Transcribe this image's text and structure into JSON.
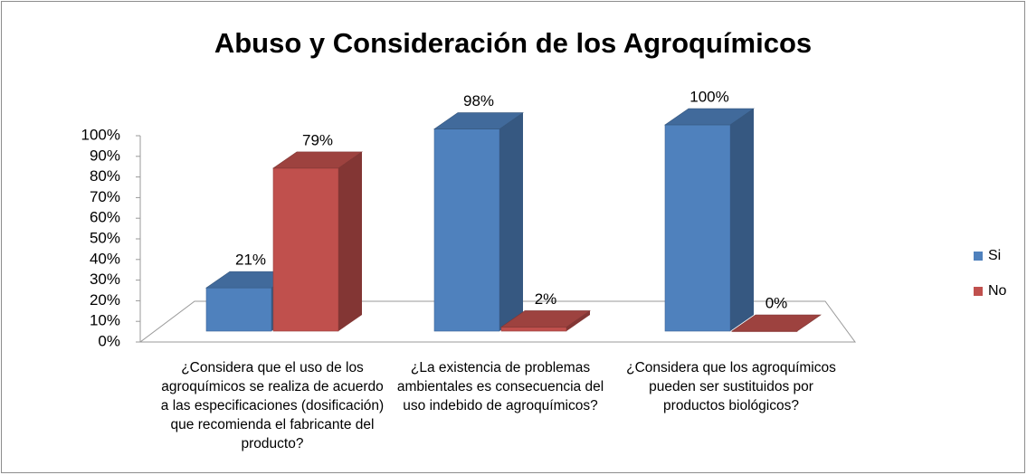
{
  "chart_data": {
    "type": "bar3d",
    "title": "Abuso y Consideración de los Agroquímicos",
    "categories": [
      "¿Considera que el uso de los agroquímicos se realiza de acuerdo a las especificaciones (dosificación) que recomienda el fabricante del producto?",
      "¿La existencia de problemas ambientales es consecuencia del uso indebido de agroquímicos?",
      "¿Considera que los agroquímicos pueden ser sustituidos por productos biológicos?"
    ],
    "series": [
      {
        "name": "Si",
        "color": "#4f81bd",
        "values": [
          21,
          98,
          100
        ],
        "value_labels": [
          "21%",
          "98%",
          "100%"
        ]
      },
      {
        "name": "No",
        "color": "#c0504d",
        "values": [
          79,
          2,
          0
        ],
        "value_labels": [
          "79%",
          "2%",
          "0%"
        ]
      }
    ],
    "ylim": [
      0,
      100
    ],
    "yticks": [
      {
        "value": 0,
        "label": "0%"
      },
      {
        "value": 10,
        "label": "10%"
      },
      {
        "value": 20,
        "label": "20%"
      },
      {
        "value": 30,
        "label": "30%"
      },
      {
        "value": 40,
        "label": "40%"
      },
      {
        "value": 50,
        "label": "50%"
      },
      {
        "value": 60,
        "label": "60%"
      },
      {
        "value": 70,
        "label": "70%"
      },
      {
        "value": 80,
        "label": "80%"
      },
      {
        "value": 90,
        "label": "90%"
      },
      {
        "value": 100,
        "label": "100%"
      }
    ],
    "legend": "right"
  }
}
